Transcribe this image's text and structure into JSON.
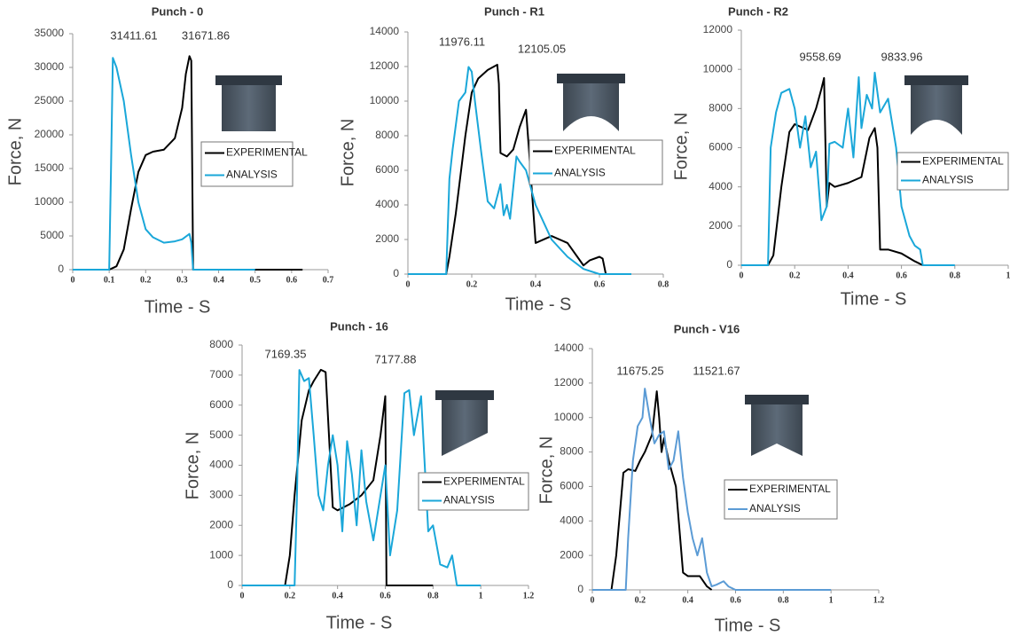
{
  "chart_data": [
    {
      "type": "line",
      "title": "Punch - 0",
      "ylabel": "Force, N",
      "xlabel": "Time - S",
      "annotations": [
        "31411.61",
        "31671.86"
      ],
      "xlim": [
        0,
        0.7
      ],
      "xticks": [
        0,
        0.1,
        0.2,
        0.3,
        0.4,
        0.5,
        0.6,
        0.7
      ],
      "ylim": [
        0,
        35000
      ],
      "yticks": [
        0,
        5000,
        10000,
        15000,
        20000,
        25000,
        30000,
        35000
      ],
      "series": [
        {
          "name": "EXPERIMENTAL",
          "color": "#000000",
          "x": [
            0,
            0.1,
            0.12,
            0.14,
            0.16,
            0.18,
            0.2,
            0.22,
            0.25,
            0.28,
            0.3,
            0.31,
            0.32,
            0.325,
            0.33,
            0.4,
            0.5,
            0.6,
            0.63
          ],
          "values": [
            0,
            0,
            500,
            3000,
            9000,
            14500,
            17000,
            17500,
            17800,
            19500,
            24000,
            29000,
            31671.86,
            31000,
            0,
            0,
            0,
            0,
            0
          ]
        },
        {
          "name": "ANALYSIS",
          "color": "#1aa7d9",
          "x": [
            0,
            0.1,
            0.105,
            0.11,
            0.12,
            0.14,
            0.16,
            0.18,
            0.2,
            0.22,
            0.25,
            0.28,
            0.3,
            0.32,
            0.325,
            0.33,
            0.4,
            0.5
          ],
          "values": [
            0,
            0,
            15000,
            31411.61,
            30000,
            25000,
            17000,
            10000,
            6000,
            4800,
            4000,
            4200,
            4500,
            5300,
            4000,
            0,
            0,
            0
          ]
        }
      ]
    },
    {
      "type": "line",
      "title": "Punch - R1",
      "ylabel": "Force, N",
      "xlabel": "Time - S",
      "annotations": [
        "11976.11",
        "12105.05"
      ],
      "xlim": [
        0,
        0.8
      ],
      "xticks": [
        0,
        0.2,
        0.4,
        0.6,
        0.8
      ],
      "ylim": [
        0,
        14000
      ],
      "yticks": [
        0,
        2000,
        4000,
        6000,
        8000,
        10000,
        12000,
        14000
      ],
      "series": [
        {
          "name": "EXPERIMENTAL",
          "color": "#000000",
          "x": [
            0,
            0.12,
            0.13,
            0.15,
            0.18,
            0.2,
            0.22,
            0.25,
            0.28,
            0.285,
            0.29,
            0.31,
            0.33,
            0.35,
            0.37,
            0.38,
            0.4,
            0.45,
            0.5,
            0.55,
            0.57,
            0.6,
            0.61,
            0.62
          ],
          "values": [
            0,
            0,
            1000,
            3500,
            8000,
            10500,
            11300,
            11800,
            12105.05,
            11000,
            7000,
            6800,
            7200,
            8500,
            9500,
            7000,
            1800,
            2200,
            1800,
            500,
            800,
            1000,
            900,
            0
          ]
        },
        {
          "name": "ANALYSIS",
          "color": "#1aa7d9",
          "x": [
            0,
            0.12,
            0.13,
            0.14,
            0.16,
            0.18,
            0.19,
            0.2,
            0.21,
            0.23,
            0.25,
            0.27,
            0.29,
            0.3,
            0.31,
            0.32,
            0.34,
            0.35,
            0.37,
            0.4,
            0.45,
            0.5,
            0.55,
            0.6,
            0.7
          ],
          "values": [
            0,
            0,
            5500,
            7200,
            10000,
            10500,
            11976.11,
            11700,
            10000,
            7000,
            4200,
            3800,
            5200,
            3400,
            4000,
            3200,
            6800,
            6500,
            6000,
            4000,
            2000,
            1000,
            300,
            0,
            0
          ]
        }
      ]
    },
    {
      "type": "line",
      "title": "Punch - R2",
      "ylabel": "Force, N",
      "xlabel": "Time - S",
      "annotations": [
        "9558.69",
        "9833.96"
      ],
      "xlim": [
        0,
        1
      ],
      "xticks": [
        0,
        0.2,
        0.4,
        0.6,
        0.8,
        1
      ],
      "ylim": [
        0,
        12000
      ],
      "yticks": [
        0,
        2000,
        4000,
        6000,
        8000,
        10000,
        12000
      ],
      "series": [
        {
          "name": "EXPERIMENTAL",
          "color": "#000000",
          "x": [
            0,
            0.1,
            0.12,
            0.15,
            0.18,
            0.2,
            0.25,
            0.28,
            0.3,
            0.31,
            0.32,
            0.33,
            0.35,
            0.4,
            0.45,
            0.48,
            0.5,
            0.51,
            0.52,
            0.55,
            0.6,
            0.65,
            0.68
          ],
          "values": [
            0,
            0,
            500,
            4000,
            6800,
            7200,
            6900,
            8000,
            9000,
            9558.69,
            3000,
            4200,
            4000,
            4200,
            4500,
            6500,
            7000,
            6000,
            800,
            800,
            600,
            200,
            0
          ]
        },
        {
          "name": "ANALYSIS",
          "color": "#1aa7d9",
          "x": [
            0,
            0.1,
            0.11,
            0.13,
            0.15,
            0.18,
            0.2,
            0.22,
            0.24,
            0.26,
            0.28,
            0.3,
            0.32,
            0.33,
            0.35,
            0.38,
            0.4,
            0.42,
            0.44,
            0.45,
            0.47,
            0.49,
            0.5,
            0.52,
            0.55,
            0.58,
            0.6,
            0.63,
            0.65,
            0.67,
            0.68,
            0.8
          ],
          "values": [
            0,
            0,
            6000,
            7800,
            8800,
            9000,
            8000,
            6000,
            7600,
            5000,
            5800,
            2300,
            3000,
            6200,
            6300,
            6000,
            8000,
            5500,
            9600,
            7000,
            8700,
            8000,
            9833.96,
            7800,
            8500,
            6000,
            3000,
            1500,
            1000,
            800,
            0,
            0
          ]
        }
      ]
    },
    {
      "type": "line",
      "title": "Punch - 16",
      "ylabel": "Force, N",
      "xlabel": "Time - S",
      "annotations": [
        "7169.35",
        "7177.88"
      ],
      "xlim": [
        0,
        1.2
      ],
      "xticks": [
        0,
        0.2,
        0.4,
        0.6,
        0.8,
        1,
        1.2
      ],
      "ylim": [
        0,
        8000
      ],
      "yticks": [
        0,
        1000,
        2000,
        3000,
        4000,
        5000,
        6000,
        7000,
        8000
      ],
      "series": [
        {
          "name": "EXPERIMENTAL",
          "color": "#000000",
          "x": [
            0,
            0.18,
            0.2,
            0.22,
            0.25,
            0.28,
            0.3,
            0.33,
            0.35,
            0.38,
            0.4,
            0.45,
            0.5,
            0.55,
            0.58,
            0.6,
            0.605,
            0.61,
            0.8
          ],
          "values": [
            0,
            0,
            1000,
            3000,
            5500,
            6500,
            6800,
            7177.88,
            7100,
            2600,
            2500,
            2700,
            3000,
            3500,
            5000,
            6300,
            0,
            0,
            0
          ]
        },
        {
          "name": "ANALYSIS",
          "color": "#1aa7d9",
          "x": [
            0,
            0.22,
            0.23,
            0.24,
            0.26,
            0.28,
            0.3,
            0.32,
            0.34,
            0.36,
            0.38,
            0.4,
            0.42,
            0.44,
            0.46,
            0.48,
            0.5,
            0.52,
            0.55,
            0.58,
            0.6,
            0.62,
            0.65,
            0.68,
            0.7,
            0.72,
            0.75,
            0.78,
            0.8,
            0.83,
            0.86,
            0.88,
            0.9,
            1
          ],
          "values": [
            0,
            0,
            3000,
            7169.35,
            6800,
            6900,
            5000,
            3000,
            2500,
            4000,
            5000,
            4000,
            1800,
            4800,
            3700,
            2000,
            4500,
            2800,
            1500,
            3000,
            4000,
            1000,
            2500,
            6400,
            6500,
            5000,
            6300,
            1800,
            2000,
            700,
            600,
            1000,
            0,
            0
          ]
        }
      ]
    },
    {
      "type": "line",
      "title": "Punch - V16",
      "ylabel": "Force, N",
      "xlabel": "Time - S",
      "annotations": [
        "11675.25",
        "11521.67"
      ],
      "xlim": [
        0,
        1.2
      ],
      "xticks": [
        0,
        0.2,
        0.4,
        0.6,
        0.8,
        1,
        1.2
      ],
      "ylim": [
        0,
        14000
      ],
      "yticks": [
        0,
        2000,
        4000,
        6000,
        8000,
        10000,
        12000,
        14000
      ],
      "series": [
        {
          "name": "EXPERIMENTAL",
          "color": "#000000",
          "x": [
            0,
            0.08,
            0.1,
            0.13,
            0.15,
            0.18,
            0.2,
            0.22,
            0.25,
            0.27,
            0.28,
            0.29,
            0.3,
            0.32,
            0.35,
            0.38,
            0.4,
            0.45,
            0.48,
            0.5
          ],
          "values": [
            0,
            0,
            2000,
            6800,
            7000,
            6900,
            7500,
            8000,
            9000,
            11521.67,
            10000,
            8000,
            8800,
            7500,
            6000,
            1000,
            800,
            800,
            200,
            0
          ]
        },
        {
          "name": "ANALYSIS",
          "color": "#5b9bd5",
          "x": [
            0,
            0.14,
            0.15,
            0.17,
            0.19,
            0.21,
            0.22,
            0.24,
            0.26,
            0.28,
            0.3,
            0.32,
            0.34,
            0.36,
            0.38,
            0.4,
            0.42,
            0.44,
            0.46,
            0.48,
            0.5,
            0.52,
            0.55,
            0.57,
            0.6,
            1
          ],
          "values": [
            0,
            0,
            3000,
            7500,
            9500,
            10000,
            11675.25,
            10000,
            8500,
            9000,
            9200,
            7000,
            7500,
            9200,
            6500,
            4500,
            3000,
            2000,
            3000,
            1000,
            200,
            300,
            500,
            200,
            0,
            0
          ]
        }
      ]
    }
  ]
}
